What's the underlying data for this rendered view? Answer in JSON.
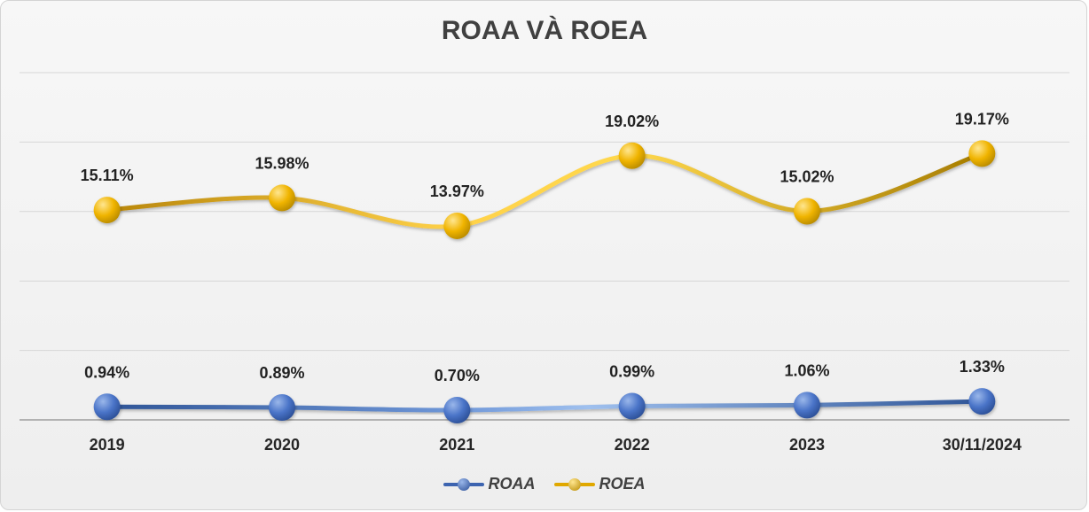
{
  "chart_data": {
    "type": "line",
    "title": "ROAA VÀ ROEA",
    "categories": [
      "2019",
      "2020",
      "2021",
      "2022",
      "2023",
      "30/11/2024"
    ],
    "series": [
      {
        "name": "ROAA",
        "values": [
          0.94,
          0.89,
          0.7,
          0.99,
          1.06,
          1.33
        ],
        "labels": [
          "0.94%",
          "0.89%",
          "0.70%",
          "0.99%",
          "1.06%",
          "1.33%"
        ],
        "color": "#4472C4"
      },
      {
        "name": "ROEA",
        "values": [
          15.11,
          15.98,
          13.97,
          19.02,
          15.02,
          19.17
        ],
        "labels": [
          "15.11%",
          "15.98%",
          "13.97%",
          "19.02%",
          "15.02%",
          "19.17%"
        ],
        "color": "#FFC000"
      }
    ],
    "ylim": [
      0,
      25
    ],
    "grid": true,
    "smooth": true,
    "legend_position": "bottom"
  }
}
